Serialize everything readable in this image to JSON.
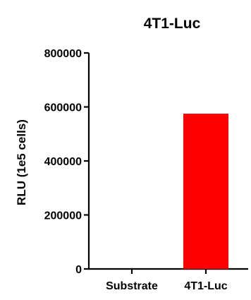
{
  "chart_data": {
    "type": "bar",
    "title": "4T1-Luc",
    "xlabel": "",
    "ylabel": "RLU (1e5 cells)",
    "categories": [
      "Substrate",
      "4T1-Luc"
    ],
    "values": [
      0,
      575000
    ],
    "ylim": [
      0,
      800000
    ],
    "yticks": [
      0,
      200000,
      400000,
      600000,
      800000
    ],
    "ytick_labels": [
      "0",
      "200000",
      "400000",
      "600000",
      "800000"
    ],
    "grid": false,
    "legend": "none",
    "bar_colors": [
      "#ff0000",
      "#ff0000"
    ],
    "axis_color": "#000000"
  }
}
